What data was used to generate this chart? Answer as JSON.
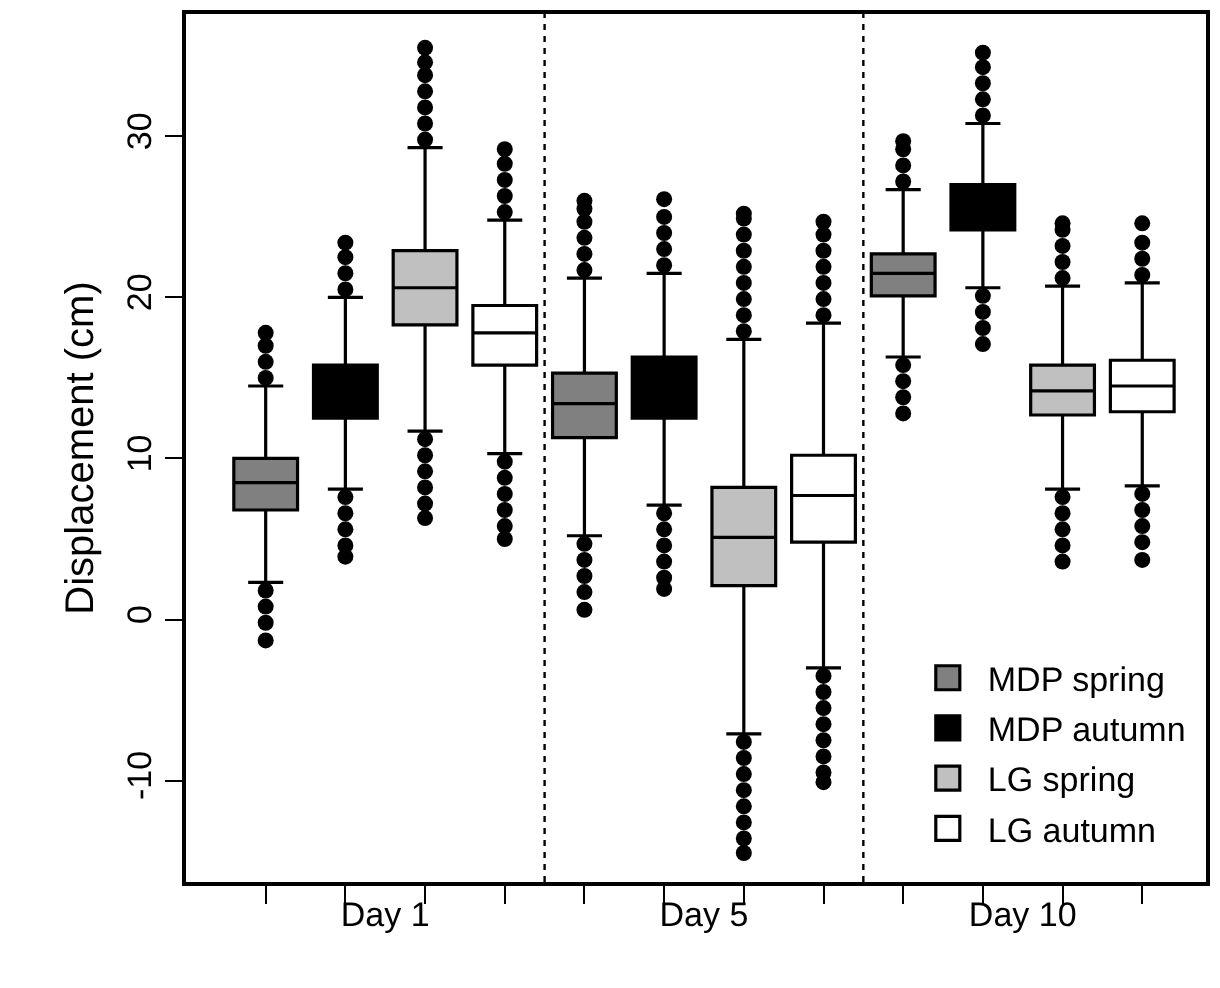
{
  "chart_data": {
    "type": "box",
    "ylabel": "Displacement (cm)",
    "categories": [
      "Day 1",
      "Day 5",
      "Day 10"
    ],
    "ylim": [
      -16.3,
      37.6
    ],
    "yticks": [
      -10,
      0,
      10,
      20,
      30
    ],
    "grid": false,
    "legend": "bottom right",
    "marker": "circle",
    "series": [
      {
        "name": "MDP spring",
        "color": "#808080",
        "boxes": [
          {
            "low": 2.3,
            "q1": 6.8,
            "median": 8.5,
            "q3": 10.0,
            "high": 14.5,
            "outliers": [
              15,
              16,
              17,
              17.8,
              1.8,
              0.8,
              -0.2,
              -1.3
            ]
          },
          {
            "low": 5.2,
            "q1": 11.3,
            "median": 13.4,
            "q3": 15.3,
            "high": 21.2,
            "outliers": [
              21.7,
              22.7,
              23.7,
              24.7,
              25.5,
              26.0,
              4.7,
              3.7,
              2.7,
              1.7,
              0.6
            ]
          },
          {
            "low": 16.3,
            "q1": 20.1,
            "median": 21.5,
            "q3": 22.7,
            "high": 26.7,
            "outliers": [
              27.2,
              28.2,
              29.2,
              29.7,
              15.8,
              14.8,
              13.8,
              12.8
            ]
          }
        ]
      },
      {
        "name": "MDP autumn",
        "color": "#000000",
        "boxes": [
          {
            "low": 8.1,
            "q1": 12.5,
            "median": 14.1,
            "q3": 15.8,
            "high": 20.0,
            "outliers": [
              20.5,
              21.5,
              22.5,
              23.4,
              7.6,
              6.6,
              5.6,
              4.6,
              3.9
            ]
          },
          {
            "low": 7.1,
            "q1": 12.5,
            "median": 14.4,
            "q3": 16.3,
            "high": 21.5,
            "outliers": [
              22,
              23,
              24,
              25,
              26.1,
              6.6,
              5.6,
              4.6,
              3.6,
              2.6,
              1.9
            ]
          },
          {
            "low": 20.6,
            "q1": 24.2,
            "median": 25.8,
            "q3": 27.0,
            "high": 30.8,
            "outliers": [
              31.3,
              32.3,
              33.3,
              34.3,
              35.2,
              20.1,
              19.1,
              18.1,
              17.1
            ]
          }
        ]
      },
      {
        "name": "LG spring",
        "color": "#c0c0c0",
        "boxes": [
          {
            "low": 11.7,
            "q1": 18.3,
            "median": 20.6,
            "q3": 22.9,
            "high": 29.3,
            "outliers": [
              29.8,
              30.8,
              31.8,
              32.8,
              33.8,
              34.6,
              35.5,
              11.2,
              10.2,
              9.2,
              8.2,
              7.2,
              6.3
            ]
          },
          {
            "low": -7.1,
            "q1": 2.1,
            "median": 5.1,
            "q3": 8.2,
            "high": 17.4,
            "outliers": [
              17.9,
              18.9,
              19.9,
              20.9,
              21.9,
              22.9,
              23.9,
              24.9,
              25.2,
              -7.6,
              -8.6,
              -9.6,
              -10.6,
              -11.6,
              -12.6,
              -13.6,
              -14.5
            ]
          },
          {
            "low": 8.1,
            "q1": 12.7,
            "median": 14.2,
            "q3": 15.8,
            "high": 20.7,
            "outliers": [
              21.2,
              22.2,
              23.2,
              24.2,
              24.6,
              7.6,
              6.6,
              5.6,
              4.6,
              3.6
            ]
          }
        ]
      },
      {
        "name": "LG autumn",
        "color": "#ffffff",
        "boxes": [
          {
            "low": 10.3,
            "q1": 15.8,
            "median": 17.8,
            "q3": 19.5,
            "high": 24.8,
            "outliers": [
              25.3,
              26.3,
              27.3,
              28.3,
              29.2,
              9.8,
              8.8,
              7.8,
              6.8,
              5.8,
              5.0
            ]
          },
          {
            "low": -3.0,
            "q1": 4.8,
            "median": 7.7,
            "q3": 10.2,
            "high": 18.4,
            "outliers": [
              18.9,
              19.9,
              20.9,
              21.9,
              22.9,
              23.9,
              24.7,
              -3.5,
              -4.5,
              -5.5,
              -6.5,
              -7.5,
              -8.5,
              -9.5,
              -10.1
            ]
          },
          {
            "low": 8.3,
            "q1": 12.9,
            "median": 14.5,
            "q3": 16.1,
            "high": 20.9,
            "outliers": [
              21.4,
              22.4,
              23.4,
              24.6,
              7.8,
              6.8,
              5.8,
              4.8,
              3.7
            ]
          }
        ]
      }
    ]
  }
}
